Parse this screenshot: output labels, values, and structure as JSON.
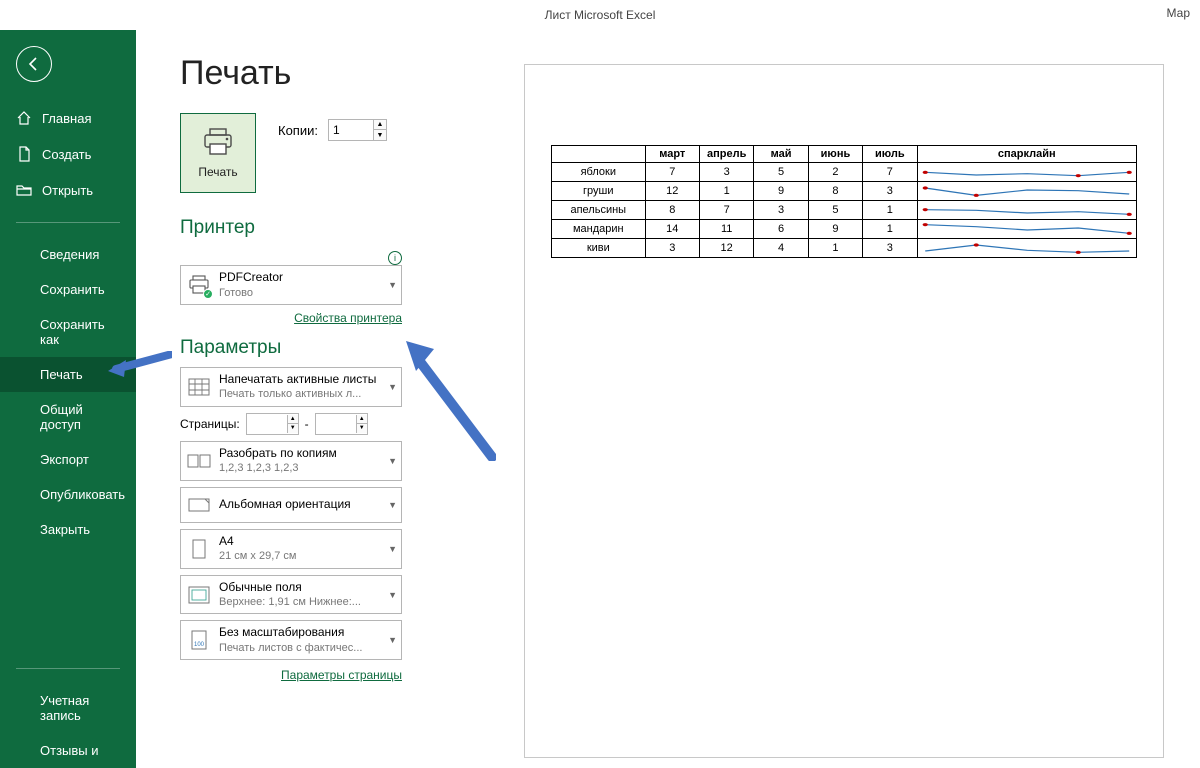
{
  "titlebar": {
    "title": "Лист Microsoft Excel",
    "right": "Мар"
  },
  "sidebar": {
    "items": [
      {
        "icon": "home",
        "label": "Главная"
      },
      {
        "icon": "new",
        "label": "Создать"
      },
      {
        "icon": "open",
        "label": "Открыть"
      }
    ],
    "sub_items": [
      "Сведения",
      "Сохранить",
      "Сохранить как",
      "Печать",
      "Общий доступ",
      "Экспорт",
      "Опубликовать",
      "Закрыть"
    ],
    "footer_items": [
      "Учетная запись",
      "Отзывы и"
    ]
  },
  "page": {
    "title": "Печать",
    "print_button_label": "Печать",
    "copies_label": "Копии:",
    "copies_value": "1"
  },
  "printer_section": {
    "title": "Принтер",
    "selected_name": "PDFCreator",
    "selected_status": "Готово",
    "properties_link": "Свойства принтера"
  },
  "params_section": {
    "title": "Параметры",
    "print_what": {
      "title": "Напечатать активные листы",
      "sub": "Печать только активных л..."
    },
    "pages_label": "Страницы:",
    "pages_from": "",
    "pages_to": "",
    "collate": {
      "title": "Разобрать по копиям",
      "sub": "1,2,3    1,2,3    1,2,3"
    },
    "orientation": {
      "title": "Альбомная ориентация"
    },
    "paper": {
      "title": "A4",
      "sub": "21 см x 29,7 см"
    },
    "margins": {
      "title": "Обычные поля",
      "sub": "Верхнее: 1,91 см Нижнее:..."
    },
    "scaling": {
      "title": "Без масштабирования",
      "sub": "Печать листов с фактичес..."
    },
    "page_setup_link": "Параметры страницы"
  },
  "preview": {
    "columns": [
      "",
      "март",
      "апрель",
      "май",
      "июнь",
      "июль",
      "спарклайн"
    ],
    "col_widths_pct": [
      16,
      9.3,
      9.3,
      9.3,
      9.3,
      9.3,
      37.5
    ],
    "rows": [
      {
        "label": "яблоки",
        "values": [
          7,
          3,
          5,
          2,
          7
        ]
      },
      {
        "label": "груши",
        "values": [
          12,
          1,
          9,
          8,
          3
        ]
      },
      {
        "label": "апельсины",
        "values": [
          8,
          7,
          3,
          5,
          1
        ]
      },
      {
        "label": "мандарин",
        "values": [
          14,
          11,
          6,
          9,
          1
        ]
      },
      {
        "label": "киви",
        "values": [
          3,
          12,
          4,
          1,
          3
        ]
      }
    ],
    "sparkline": {
      "stroke_color": "#2e75b6",
      "marker_color": "#c00000",
      "marker_radius": 1.6,
      "stroke_width": 1.2,
      "width": 130,
      "height": 14,
      "y_domain": [
        0,
        15
      ]
    }
  },
  "annotation_arrow_color": "#4472c4"
}
